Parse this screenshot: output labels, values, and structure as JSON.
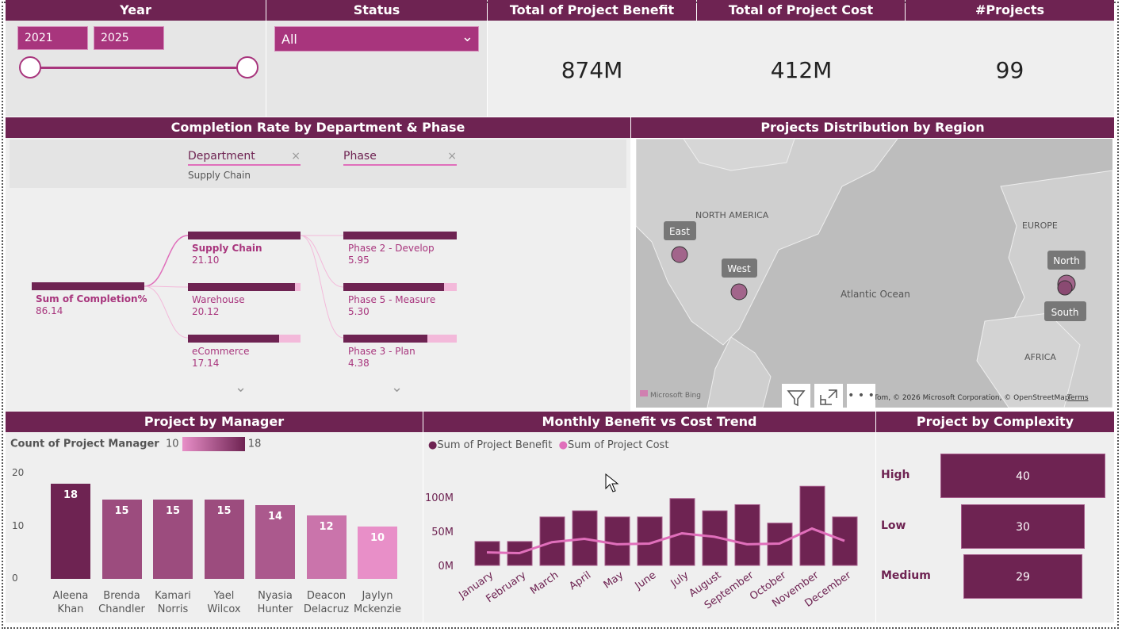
{
  "year": {
    "title": "Year",
    "from": "2021",
    "to": "2025",
    "range_fraction": [
      0,
      1
    ]
  },
  "status": {
    "title": "Status",
    "value": "All"
  },
  "kpis": [
    {
      "title": "Total of Project Benefit",
      "value": "874M"
    },
    {
      "title": "Total of Project Cost",
      "value": "412M"
    },
    {
      "title": "#Projects",
      "value": "99"
    }
  ],
  "decomp": {
    "title": "Completion Rate by Department & Phase",
    "filters": [
      {
        "label": "Department",
        "value": "Supply Chain"
      },
      {
        "label": "Phase",
        "value": ""
      }
    ],
    "root": {
      "label": "Sum of Completion%",
      "value": "86.14"
    },
    "level1": [
      {
        "label": "Supply Chain",
        "value": "21.10",
        "fill": 1.0
      },
      {
        "label": "Warehouse",
        "value": "20.12",
        "fill": 0.95
      },
      {
        "label": "eCommerce",
        "value": "17.14",
        "fill": 0.81
      }
    ],
    "level2": [
      {
        "label": "Phase 2 - Develop",
        "value": "5.95",
        "fill": 1.0
      },
      {
        "label": "Phase 5 - Measure",
        "value": "5.30",
        "fill": 0.89
      },
      {
        "label": "Phase 3 - Plan",
        "value": "4.38",
        "fill": 0.74
      }
    ]
  },
  "map": {
    "title": "Projects Distribution by Region",
    "labels": {
      "na": "NORTH AMERICA",
      "eu": "EUROPE",
      "ocean": "Atlantic Ocean",
      "af": "AFRICA"
    },
    "regions": [
      "East",
      "West",
      "North",
      "South"
    ],
    "brand": "Microsoft Bing",
    "attribution": "Tom, © 2026 Microsoft Corporation, © OpenStreetMap",
    "terms": "Terms"
  },
  "manager": {
    "title": "Project by Manager",
    "legend": {
      "label": "Count of Project Manager",
      "min": "10",
      "max": "18"
    }
  },
  "monthly": {
    "title": "Monthly Benefit vs Cost Trend"
  },
  "complexity": {
    "title": "Project by Complexity"
  },
  "chart_data": [
    {
      "type": "bar",
      "title": "Project by Manager",
      "categories": [
        "Aleena Khan",
        "Brenda Chandler",
        "Kamari Norris",
        "Yael Wilcox",
        "Nyasia Hunter",
        "Deacon Delacruz",
        "Jaylyn Mckenzie"
      ],
      "values": [
        18,
        15,
        15,
        15,
        14,
        12,
        10
      ],
      "yticks": [
        "0",
        "10",
        "20"
      ],
      "ylim": [
        0,
        20
      ],
      "colors": {
        "min": "#e88fc8",
        "max": "#6e2352"
      }
    },
    {
      "type": "bar",
      "title": "Monthly Benefit vs Cost Trend",
      "categories": [
        "January",
        "February",
        "March",
        "April",
        "May",
        "June",
        "July",
        "August",
        "September",
        "October",
        "November",
        "December"
      ],
      "series": [
        {
          "name": "Sum of  Project Benefit",
          "type": "bar",
          "color": "#6e2352",
          "values": [
            35,
            35,
            71,
            80,
            71,
            71,
            98,
            80,
            89,
            62,
            116,
            71
          ]
        },
        {
          "name": "Sum of  Project Cost",
          "type": "line",
          "color": "#e06fbb",
          "values": [
            19,
            18,
            34,
            39,
            31,
            32,
            47,
            42,
            31,
            32,
            54,
            36
          ]
        }
      ],
      "yticks": [
        "0M",
        "50M",
        "100M"
      ],
      "ylim": [
        0,
        125
      ],
      "unit": "M"
    },
    {
      "type": "bar",
      "title": "Project by Complexity",
      "categories": [
        "High",
        "Low",
        "Medium"
      ],
      "values": [
        40,
        30,
        29
      ],
      "color": "#6e2352"
    }
  ]
}
